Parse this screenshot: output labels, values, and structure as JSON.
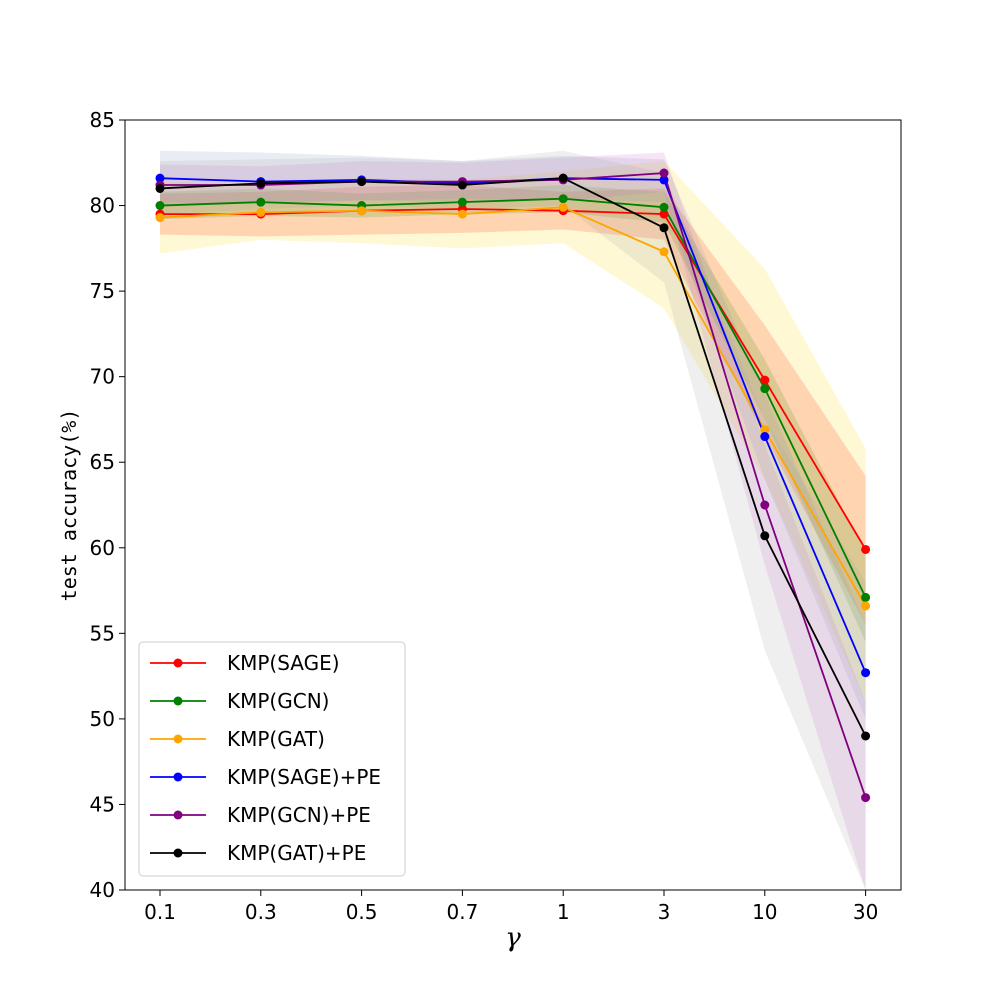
{
  "chart_data": {
    "type": "line",
    "title": "",
    "xlabel": "γ",
    "ylabel": "test accuracy(%)",
    "categories": [
      "0.1",
      "0.3",
      "0.5",
      "0.7",
      "1",
      "3",
      "10",
      "30"
    ],
    "ylim": [
      40,
      85
    ],
    "yticks": [
      "40",
      "45",
      "50",
      "55",
      "60",
      "65",
      "70",
      "75",
      "80",
      "85"
    ],
    "grid": false,
    "legend_position": "lower-left",
    "series": [
      {
        "name": "KMP(SAGE)",
        "color": "#ff0000",
        "band_color": "#ff0000",
        "values": [
          79.5,
          79.5,
          79.7,
          79.8,
          79.7,
          79.5,
          69.8,
          59.9
        ],
        "lower": [
          78.3,
          78.2,
          78.3,
          78.4,
          78.6,
          78.0,
          66.5,
          55.5
        ],
        "upper": [
          80.7,
          80.8,
          81.1,
          81.2,
          80.8,
          81.0,
          73.0,
          64.2
        ]
      },
      {
        "name": "KMP(GCN)",
        "color": "#008000",
        "band_color": "#008000",
        "values": [
          80.0,
          80.2,
          80.0,
          80.2,
          80.4,
          79.9,
          69.3,
          57.1
        ],
        "lower": [
          79.2,
          79.4,
          79.3,
          79.5,
          79.6,
          79.0,
          67.5,
          54.5
        ],
        "upper": [
          80.8,
          81.0,
          80.7,
          80.9,
          81.2,
          80.8,
          71.0,
          59.7
        ]
      },
      {
        "name": "KMP(GAT)",
        "color": "#ffa500",
        "band_color": "#ffd700",
        "values": [
          79.3,
          79.6,
          79.7,
          79.5,
          79.9,
          77.3,
          66.9,
          56.6
        ],
        "lower": [
          77.2,
          78.0,
          77.8,
          77.5,
          77.8,
          74.0,
          64.0,
          51.0
        ],
        "upper": [
          81.4,
          81.2,
          81.6,
          81.5,
          82.0,
          82.6,
          76.3,
          65.8
        ]
      },
      {
        "name": "KMP(SAGE)+PE",
        "color": "#0000ff",
        "band_color": "#8090c0",
        "values": [
          81.6,
          81.4,
          81.5,
          81.3,
          81.6,
          81.5,
          66.5,
          52.7
        ],
        "lower": [
          80.2,
          80.1,
          80.3,
          80.2,
          80.4,
          80.2,
          64.0,
          50.0
        ],
        "upper": [
          83.2,
          83.1,
          82.9,
          82.6,
          82.9,
          82.7,
          69.0,
          55.5
        ]
      },
      {
        "name": "KMP(GCN)+PE",
        "color": "#800080",
        "band_color": "#cc66cc",
        "values": [
          81.2,
          81.2,
          81.4,
          81.4,
          81.5,
          81.9,
          62.5,
          45.4
        ],
        "lower": [
          80.0,
          80.2,
          80.3,
          80.4,
          80.3,
          80.8,
          59.0,
          40.0
        ],
        "upper": [
          82.4,
          82.3,
          82.6,
          82.5,
          82.8,
          83.1,
          66.0,
          51.0
        ]
      },
      {
        "name": "KMP(GAT)+PE",
        "color": "#000000",
        "band_color": "#a0a0a0",
        "values": [
          81.0,
          81.3,
          81.4,
          81.2,
          81.6,
          78.7,
          60.7,
          49.0
        ],
        "lower": [
          79.5,
          79.8,
          80.0,
          79.8,
          80.0,
          75.5,
          54.0,
          40.0
        ],
        "upper": [
          82.6,
          82.7,
          82.8,
          82.6,
          83.2,
          81.9,
          67.5,
          58.0
        ]
      }
    ]
  }
}
